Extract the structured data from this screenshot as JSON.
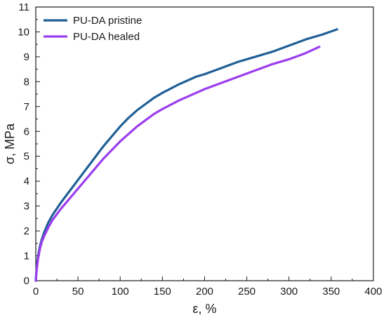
{
  "chart_data": {
    "type": "line",
    "xlabel": "ε, %",
    "ylabel": "σ, MPa",
    "xlim": [
      0,
      400
    ],
    "ylim": [
      0,
      11
    ],
    "xticks": [
      "0",
      "50",
      "100",
      "150",
      "200",
      "250",
      "300",
      "350",
      "400"
    ],
    "yticks": [
      "0",
      "1",
      "2",
      "3",
      "4",
      "5",
      "6",
      "7",
      "8",
      "9",
      "10",
      "11"
    ],
    "grid": false,
    "legend_position": "top-left",
    "series": [
      {
        "name": "PU-DA pristine",
        "color": "#1f5f96",
        "x": [
          0,
          1,
          2,
          3,
          5,
          7,
          10,
          15,
          20,
          30,
          40,
          50,
          60,
          70,
          80,
          90,
          100,
          110,
          120,
          130,
          140,
          150,
          170,
          190,
          200,
          220,
          240,
          260,
          280,
          300,
          320,
          340,
          357
        ],
        "y": [
          0,
          0.5,
          0.8,
          1.05,
          1.4,
          1.65,
          1.95,
          2.35,
          2.65,
          3.15,
          3.6,
          4.05,
          4.5,
          4.95,
          5.4,
          5.8,
          6.2,
          6.55,
          6.85,
          7.1,
          7.35,
          7.55,
          7.9,
          8.2,
          8.3,
          8.55,
          8.8,
          9.0,
          9.2,
          9.45,
          9.7,
          9.9,
          10.1
        ]
      },
      {
        "name": "PU-DA healed",
        "color": "#9b3ded",
        "x": [
          0,
          1,
          2,
          3,
          5,
          7,
          10,
          15,
          20,
          30,
          40,
          50,
          60,
          70,
          80,
          90,
          100,
          110,
          120,
          130,
          140,
          150,
          170,
          190,
          200,
          220,
          240,
          260,
          280,
          300,
          320,
          336
        ],
        "y": [
          0,
          0.4,
          0.7,
          0.95,
          1.3,
          1.55,
          1.8,
          2.15,
          2.45,
          2.9,
          3.3,
          3.7,
          4.1,
          4.5,
          4.9,
          5.25,
          5.6,
          5.9,
          6.2,
          6.45,
          6.7,
          6.9,
          7.25,
          7.55,
          7.7,
          7.95,
          8.2,
          8.45,
          8.7,
          8.9,
          9.15,
          9.4
        ]
      }
    ]
  }
}
